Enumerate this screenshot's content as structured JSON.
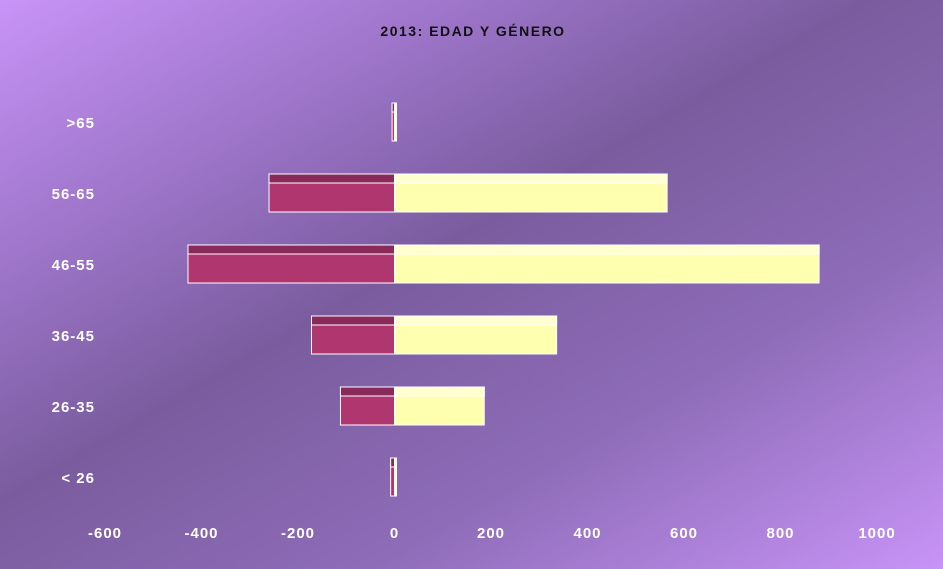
{
  "chart_data": {
    "type": "bar",
    "orientation": "horizontal",
    "stacked_diverging": true,
    "title": "2013: EDAD Y GÉNERO",
    "categories": [
      "< 26",
      "26-35",
      "36-45",
      "46-55",
      "56-65",
      ">65"
    ],
    "series": [
      {
        "values": [
          -8,
          -112,
          -172,
          -428,
          -260,
          -5
        ],
        "color": "#b03670",
        "top_color": "#8a2a5a"
      },
      {
        "values": [
          4,
          186,
          336,
          880,
          565,
          2
        ],
        "color": "#ffffb0",
        "top_color": "#ffffd0"
      }
    ],
    "xlim": [
      -600,
      1000
    ],
    "x_ticks": [
      "-600",
      "-400",
      "-200",
      "0",
      "200",
      "400",
      "600",
      "800",
      "1000"
    ],
    "x_tick_values": [
      -600,
      -400,
      -200,
      0,
      200,
      400,
      600,
      800,
      1000
    ],
    "grid": false,
    "legend": "none"
  }
}
